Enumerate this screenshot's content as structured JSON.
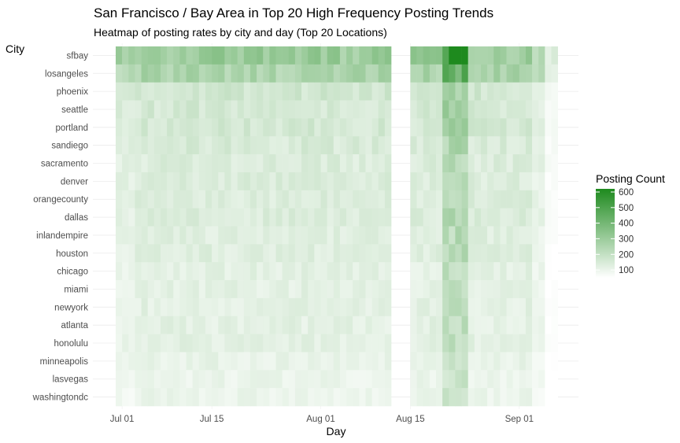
{
  "chart_data": {
    "type": "heatmap",
    "title": "San Francisco / Bay Area in Top 20 High Frequency Posting Trends",
    "subtitle": "Heatmap of posting rates by city and day (Top 20 Locations)",
    "xlabel": "Day",
    "ylabel": "City",
    "x_start": "2023-06-30",
    "x_end": "2023-09-06",
    "missing_days": [
      "2023-08-12",
      "2023-08-13",
      "2023-08-14"
    ],
    "x_ticks": [
      "Jul 01",
      "Jul 15",
      "Aug 01",
      "Aug 15",
      "Sep 01"
    ],
    "y_categories": [
      "sfbay",
      "losangeles",
      "phoenix",
      "seattle",
      "portland",
      "sandiego",
      "sacramento",
      "denver",
      "orangecounty",
      "dallas",
      "inlandempire",
      "houston",
      "chicago",
      "miami",
      "newyork",
      "atlanta",
      "honolulu",
      "minneapolis",
      "lasvegas",
      "washingtondc"
    ],
    "typical_daily_count": [
      300,
      260,
      170,
      160,
      160,
      150,
      140,
      140,
      140,
      140,
      130,
      130,
      120,
      120,
      120,
      120,
      120,
      110,
      100,
      100
    ],
    "spike_days": [
      "2023-08-20",
      "2023-08-21",
      "2023-08-22",
      "2023-08-23"
    ],
    "peak_value": 620,
    "legend": {
      "title": "Posting Count",
      "ticks": [
        100,
        200,
        300,
        400,
        500,
        600
      ],
      "range": [
        50,
        620
      ],
      "low_color": "#ffffff",
      "high_color": "#1e8a1e",
      "position": "right"
    },
    "grid": true
  }
}
